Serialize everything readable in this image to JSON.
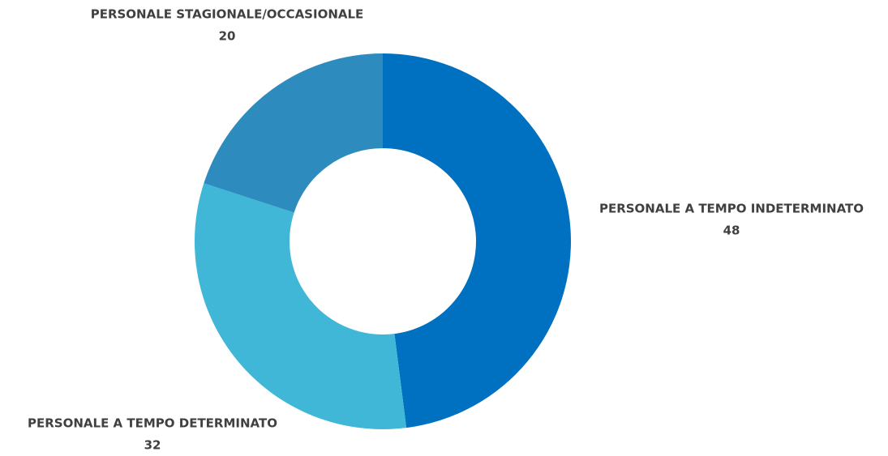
{
  "chart_data": {
    "type": "donut",
    "categories": [
      "PERSONALE A TEMPO INDETERMINATO",
      "PERSONALE A TEMPO DETERMINATO",
      "PERSONALE STAGIONALE/OCCASIONALE"
    ],
    "values": [
      48,
      32,
      20
    ],
    "colors": [
      "#0070c0",
      "#40b7d6",
      "#2e8bbd"
    ]
  }
}
